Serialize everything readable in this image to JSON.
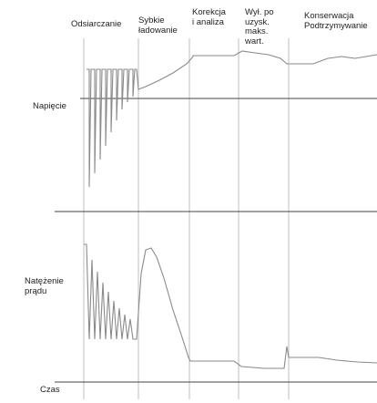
{
  "chart_data": {
    "type": "line",
    "stages": [
      {
        "label": "Odsiarczanie"
      },
      {
        "label": "Sybkie\nładowanie"
      },
      {
        "label": "Korekcja\ni analiza"
      },
      {
        "label": "Wył. po\nuzysk.\nmaks.\nwart."
      },
      {
        "label": "Konserwacja\nPodtrzymywanie"
      }
    ],
    "panels": [
      {
        "ylabel": "Napięcie",
        "curve": "voltage"
      },
      {
        "ylabel": "Natężenie\nprądu",
        "curve": "current"
      }
    ],
    "xlabel": "Czas",
    "grid": "vertical stage boundaries",
    "line_color": "#8a8a8a",
    "axis_color": "#444444"
  }
}
